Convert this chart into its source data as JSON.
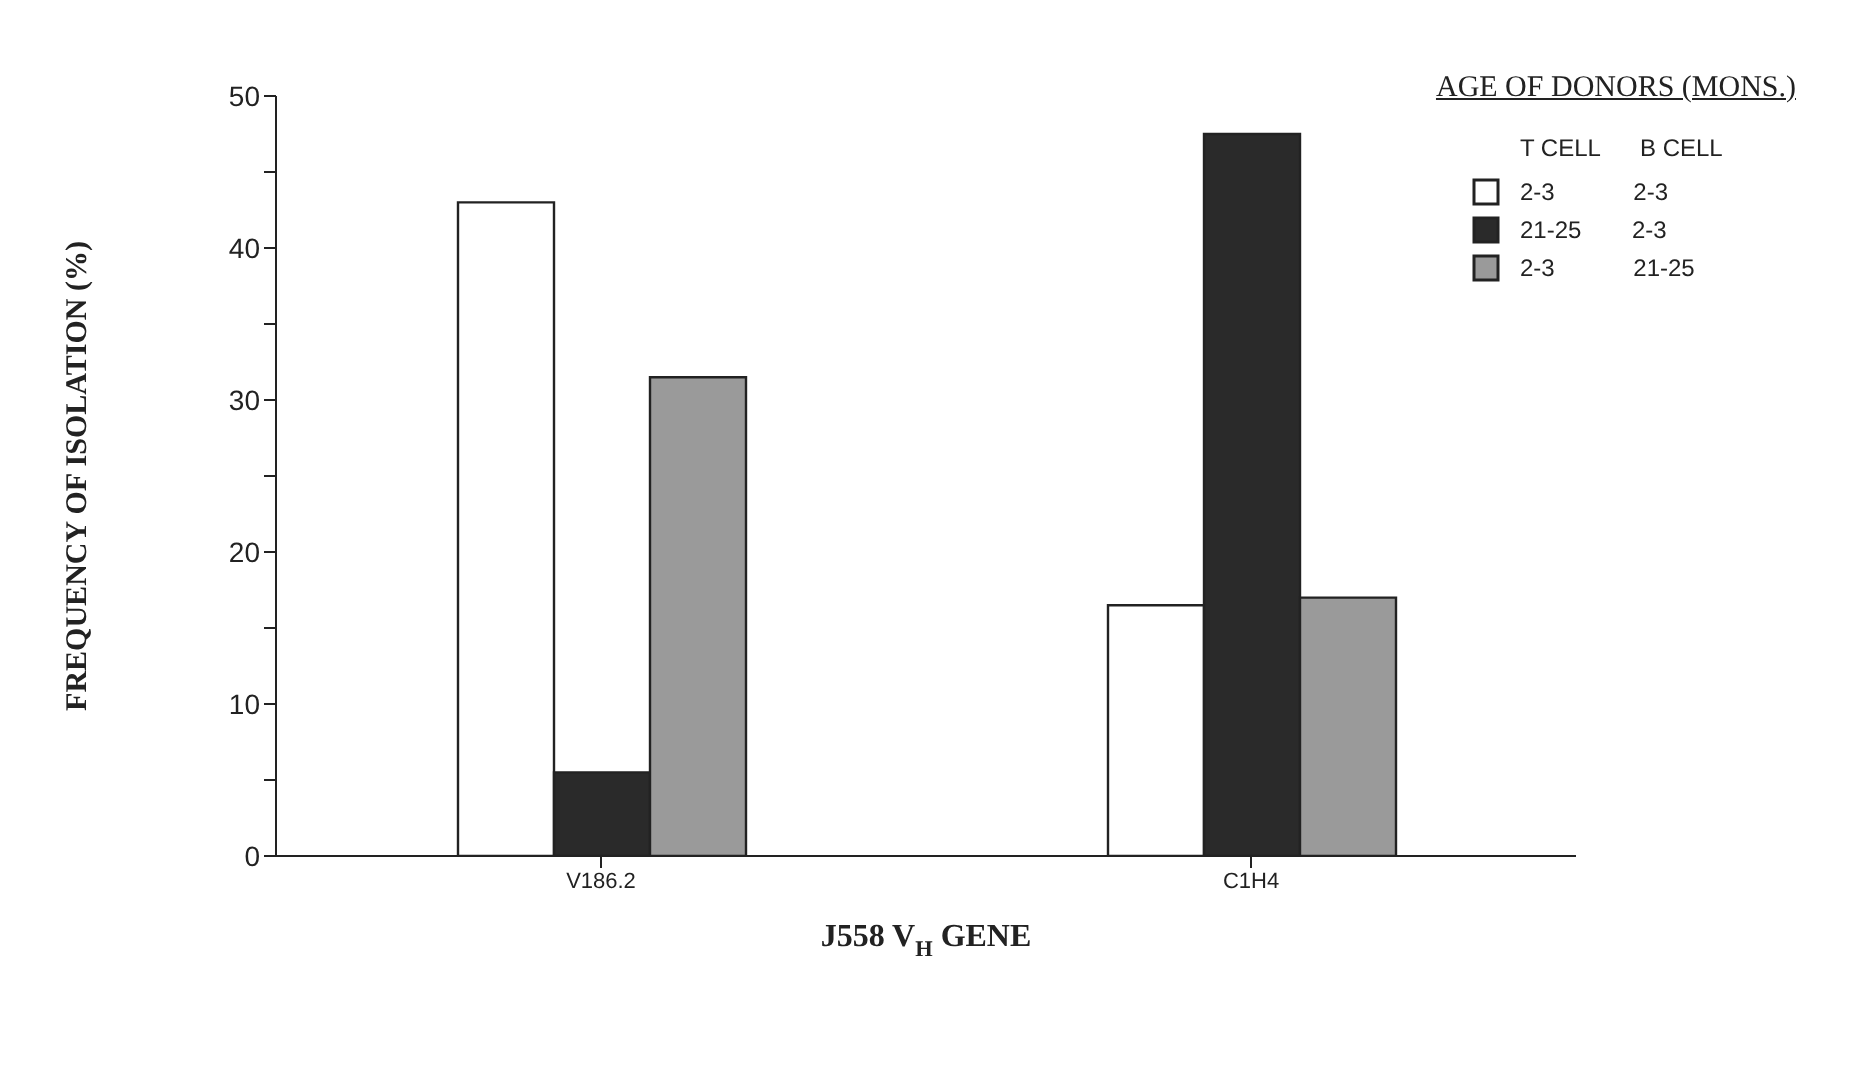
{
  "chart_data": {
    "type": "bar",
    "categories": [
      "V186.2",
      "C1H4"
    ],
    "series": [
      {
        "name": "2-3 2-3",
        "color": "#ffffff",
        "values": [
          43,
          16.5
        ]
      },
      {
        "name": "21-25 2-3",
        "color": "#2a2a2a",
        "values": [
          5.5,
          47.5
        ]
      },
      {
        "name": "2-3 21-25",
        "color": "#9a9a9a",
        "values": [
          31.5,
          17
        ]
      }
    ],
    "xlabel": "J558 V$_{H}$ GENE",
    "ylabel": "FREQUENCY OF ISOLATION (%)",
    "legend_title": "AGE OF DONORS (MONS.)",
    "annotations": [
      "T CELL",
      "B CELL"
    ],
    "ylim": [
      0,
      50
    ],
    "yticks": [
      0,
      {
        "value": 5,
        "label": null
      },
      10,
      {
        "value": 15,
        "label": null
      },
      20,
      {
        "value": 25,
        "label": null
      },
      30,
      {
        "value": 35,
        "label": null
      },
      40,
      {
        "value": 45,
        "label": null
      },
      50
    ],
    "grid": false,
    "legend": "top right"
  }
}
